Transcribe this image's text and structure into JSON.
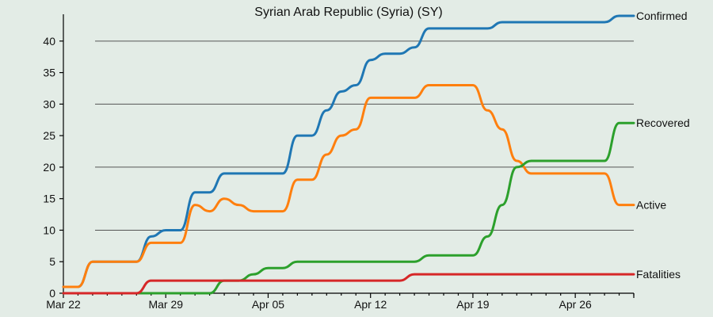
{
  "chart_data": {
    "type": "line",
    "title": "Syrian Arab Republic (Syria) (SY)",
    "x_start": "Mar 22",
    "x_end_day": 39,
    "x_tick_days": [
      0,
      7,
      14,
      21,
      28,
      35
    ],
    "x_tick_labels": [
      "Mar 22",
      "Mar 29",
      "Apr 05",
      "Apr 12",
      "Apr 19",
      "Apr 26"
    ],
    "ylim": [
      0,
      44
    ],
    "y_ticks": [
      0,
      5,
      10,
      15,
      20,
      25,
      30,
      35,
      40
    ],
    "y_grid": [
      10,
      20,
      30,
      40
    ],
    "series": [
      {
        "name": "Confirmed",
        "color": "#1f77b4",
        "values": [
          1,
          1,
          5,
          5,
          5,
          5,
          9,
          10,
          10,
          16,
          16,
          19,
          19,
          19,
          19,
          19,
          25,
          25,
          29,
          32,
          33,
          37,
          38,
          38,
          39,
          42,
          42,
          42,
          42,
          42,
          43,
          43,
          43,
          43,
          43,
          43,
          43,
          43,
          44,
          44
        ]
      },
      {
        "name": "Active",
        "color": "#ff7f0e",
        "values": [
          1,
          1,
          5,
          5,
          5,
          5,
          8,
          8,
          8,
          14,
          13,
          15,
          14,
          13,
          13,
          13,
          18,
          18,
          22,
          25,
          26,
          31,
          31,
          31,
          31,
          33,
          33,
          33,
          33,
          29,
          26,
          21,
          19,
          19,
          19,
          19,
          19,
          19,
          14,
          14
        ]
      },
      {
        "name": "Recovered",
        "color": "#2ca02c",
        "values": [
          0,
          0,
          0,
          0,
          0,
          0,
          0,
          0,
          0,
          0,
          0,
          2,
          2,
          3,
          4,
          4,
          5,
          5,
          5,
          5,
          5,
          5,
          5,
          5,
          5,
          6,
          6,
          6,
          6,
          9,
          14,
          20,
          21,
          21,
          21,
          21,
          21,
          21,
          27,
          27
        ]
      },
      {
        "name": "Fatalities",
        "color": "#d62728",
        "values": [
          0,
          0,
          0,
          0,
          0,
          0,
          2,
          2,
          2,
          2,
          2,
          2,
          2,
          2,
          2,
          2,
          2,
          2,
          2,
          2,
          2,
          2,
          2,
          2,
          3,
          3,
          3,
          3,
          3,
          3,
          3,
          3,
          3,
          3,
          3,
          3,
          3,
          3,
          3,
          3
        ]
      }
    ]
  }
}
